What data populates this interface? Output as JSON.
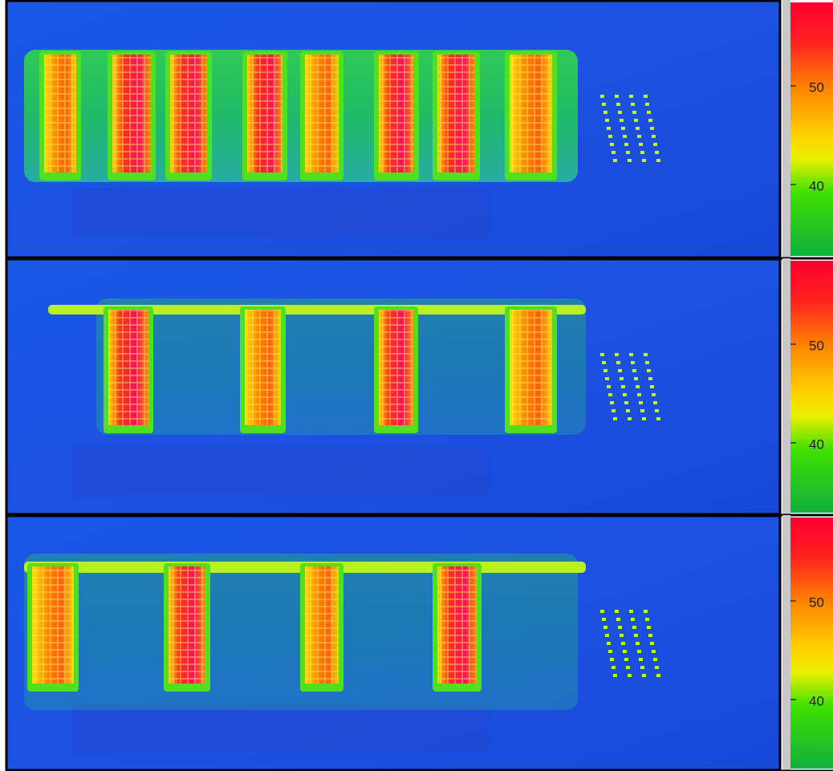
{
  "panels": [
    {
      "colorbar": {
        "ticks": [
          50,
          40
        ]
      }
    },
    {
      "colorbar": {
        "ticks": [
          50,
          40
        ]
      }
    },
    {
      "colorbar": {
        "ticks": [
          50,
          40
        ]
      }
    }
  ]
}
